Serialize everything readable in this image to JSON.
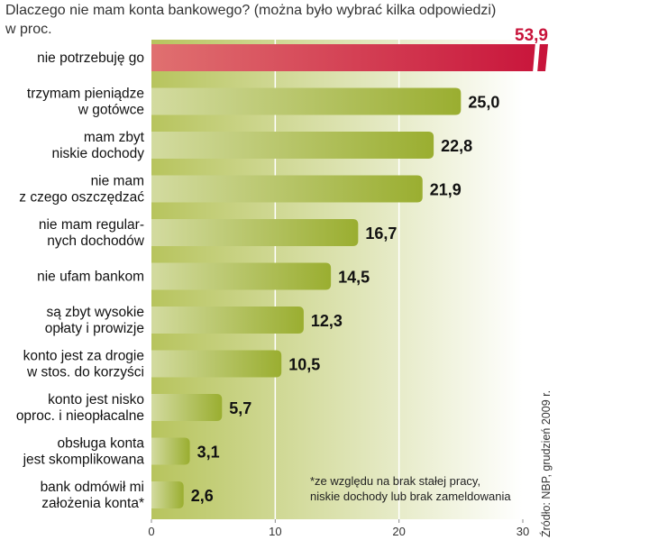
{
  "chart_data": {
    "type": "bar",
    "orientation": "horizontal",
    "title": "Dlaczego nie mam konta bankowego? (można było wybrać kilka odpowiedzi)",
    "subtitle": "w proc.",
    "categories": [
      [
        "nie potrzebuję go"
      ],
      [
        "trzymam pieniądze",
        "w gotówce"
      ],
      [
        "mam zbyt",
        "niskie dochody"
      ],
      [
        "nie mam",
        "z czego oszczędzać"
      ],
      [
        "nie mam regular-",
        "nych dochodów"
      ],
      [
        "nie ufam bankom"
      ],
      [
        "są zbyt wysokie",
        "opłaty i prowizje"
      ],
      [
        "konto jest za drogie",
        "w stos. do korzyści"
      ],
      [
        "konto jest nisko",
        "oproc. i nieopłacalne"
      ],
      [
        "obsługa konta",
        "jest skomplikowana"
      ],
      [
        "bank odmówił mi",
        "założenia konta*"
      ]
    ],
    "values": [
      53.9,
      25.0,
      22.8,
      21.9,
      16.7,
      14.5,
      12.3,
      10.5,
      5.7,
      3.1,
      2.6
    ],
    "value_labels": [
      "53,9",
      "25,0",
      "22,8",
      "21,9",
      "16,7",
      "14,5",
      "12,3",
      "10,5",
      "5,7",
      "3,1",
      "2,6"
    ],
    "xlim": [
      0,
      30
    ],
    "xticks": [
      0,
      10,
      20,
      30
    ],
    "xtick_labels": [
      "0",
      "10",
      "20",
      "30"
    ],
    "axis_break": true,
    "grid": true,
    "colors": {
      "bar": "#9fb33a",
      "highlight_bar": "#c8133a",
      "highlight_label": "#c8133a",
      "background_from": "#b7c45d",
      "background_to": "#ffffff",
      "text": "#111111"
    },
    "annotation": [
      "*ze względu na brak stałej pracy,",
      "niskie dochody lub brak zameldowania"
    ],
    "source": "Źródło: NBP, grudzień 2009 r."
  }
}
